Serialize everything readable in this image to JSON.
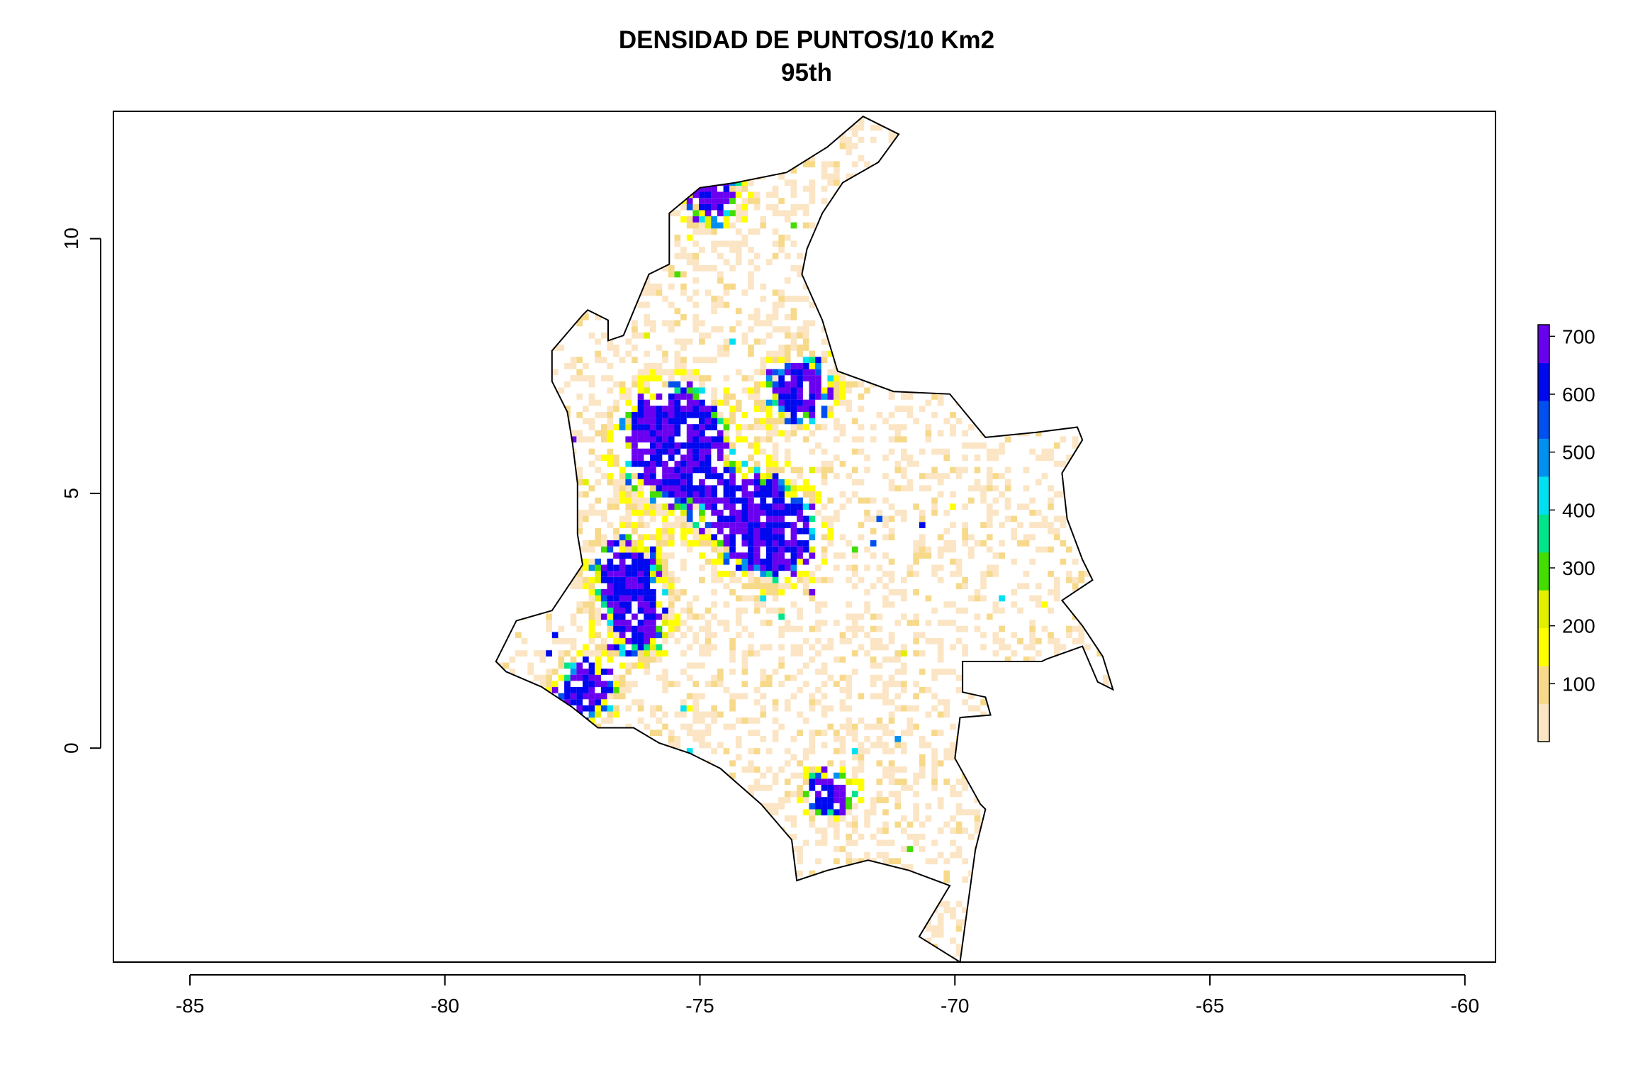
{
  "chart_data": {
    "type": "heatmap",
    "title": "DENSIDAD DE PUNTOS/10 Km2",
    "subtitle": "95th",
    "x_ticks": [
      -85,
      -80,
      -75,
      -70,
      -65,
      -60
    ],
    "y_ticks": [
      0,
      5,
      10
    ],
    "xlim": [
      -86.5,
      -59.4
    ],
    "ylim": [
      -4.2,
      12.5
    ],
    "legend": {
      "position": "right",
      "ticks": [
        100,
        200,
        300,
        400,
        500,
        600,
        700
      ],
      "range": [
        0,
        720
      ],
      "colors": [
        "#fbe5c4",
        "#f7d98a",
        "#ffff00",
        "#e2f000",
        "#43dd00",
        "#00e58a",
        "#00e0f0",
        "#0090f0",
        "#0050f0",
        "#0008ee",
        "#6a00f0"
      ]
    },
    "region_outline_lonlat": [
      [
        -71.8,
        12.4
      ],
      [
        -71.1,
        12.05
      ],
      [
        -71.5,
        11.5
      ],
      [
        -72.2,
        11.1
      ],
      [
        -72.6,
        10.5
      ],
      [
        -72.9,
        9.8
      ],
      [
        -73.0,
        9.3
      ],
      [
        -72.6,
        8.4
      ],
      [
        -72.3,
        7.4
      ],
      [
        -71.2,
        7.0
      ],
      [
        -70.1,
        6.95
      ],
      [
        -69.4,
        6.1
      ],
      [
        -68.4,
        6.2
      ],
      [
        -67.6,
        6.3
      ],
      [
        -67.5,
        6.05
      ],
      [
        -67.9,
        5.4
      ],
      [
        -67.8,
        4.5
      ],
      [
        -67.5,
        3.7
      ],
      [
        -67.3,
        3.3
      ],
      [
        -67.9,
        2.9
      ],
      [
        -67.5,
        2.4
      ],
      [
        -67.1,
        1.8
      ],
      [
        -66.9,
        1.15
      ],
      [
        -67.2,
        1.3
      ],
      [
        -67.5,
        2.0
      ],
      [
        -68.2,
        1.75
      ],
      [
        -68.3,
        1.7
      ],
      [
        -69.85,
        1.7
      ],
      [
        -69.85,
        1.1
      ],
      [
        -69.4,
        1.0
      ],
      [
        -69.3,
        0.65
      ],
      [
        -69.9,
        0.6
      ],
      [
        -70.0,
        -0.2
      ],
      [
        -69.5,
        -1.1
      ],
      [
        -69.4,
        -1.2
      ],
      [
        -69.6,
        -2.0
      ],
      [
        -69.9,
        -4.2
      ],
      [
        -70.7,
        -3.7
      ],
      [
        -70.1,
        -2.7
      ],
      [
        -70.9,
        -2.4
      ],
      [
        -71.7,
        -2.2
      ],
      [
        -72.5,
        -2.4
      ],
      [
        -73.1,
        -2.6
      ],
      [
        -73.2,
        -1.8
      ],
      [
        -73.8,
        -1.1
      ],
      [
        -74.6,
        -0.4
      ],
      [
        -75.2,
        -0.1
      ],
      [
        -75.8,
        0.1
      ],
      [
        -76.3,
        0.4
      ],
      [
        -77.0,
        0.4
      ],
      [
        -77.5,
        0.8
      ],
      [
        -78.1,
        1.2
      ],
      [
        -78.8,
        1.5
      ],
      [
        -79.0,
        1.7
      ],
      [
        -78.6,
        2.5
      ],
      [
        -77.9,
        2.7
      ],
      [
        -77.3,
        3.6
      ],
      [
        -77.4,
        4.2
      ],
      [
        -77.4,
        5.2
      ],
      [
        -77.5,
        6.0
      ],
      [
        -77.6,
        6.6
      ],
      [
        -77.9,
        7.2
      ],
      [
        -77.9,
        7.8
      ],
      [
        -77.3,
        8.5
      ],
      [
        -77.2,
        8.6
      ],
      [
        -76.8,
        8.4
      ],
      [
        -76.8,
        8.0
      ],
      [
        -76.5,
        8.1
      ],
      [
        -76.0,
        9.3
      ],
      [
        -75.6,
        9.5
      ],
      [
        -75.6,
        10.5
      ],
      [
        -75.0,
        11.0
      ],
      [
        -74.3,
        11.1
      ],
      [
        -73.3,
        11.3
      ],
      [
        -72.5,
        11.8
      ],
      [
        -71.8,
        12.4
      ]
    ]
  }
}
